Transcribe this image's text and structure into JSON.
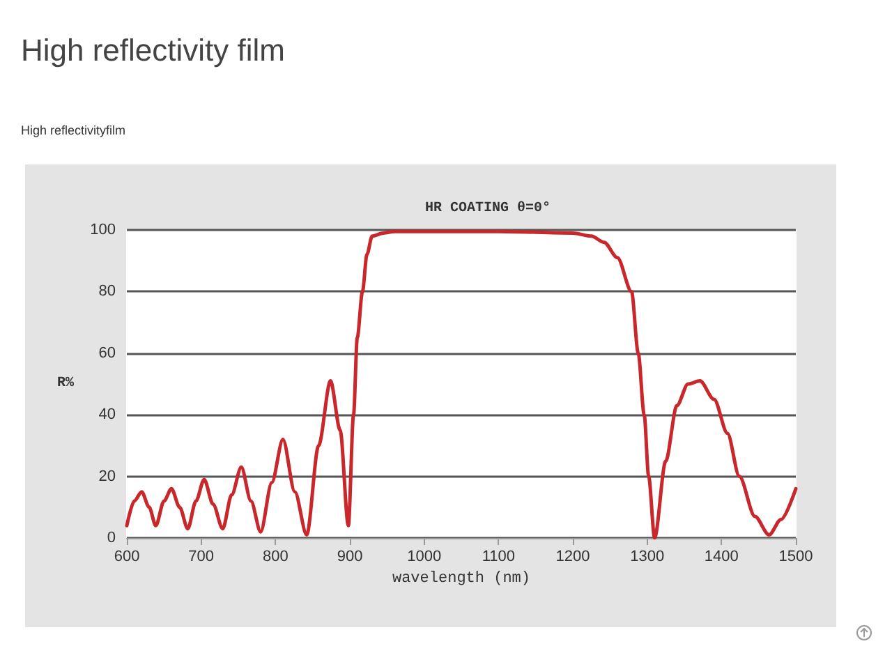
{
  "chart_data": {
    "type": "line",
    "title": "High reflectivity film",
    "subtitle": "High reflectivityfilm",
    "annotations": [
      "HR COATING θ=0°"
    ],
    "xlabel": "wavelength (nm)",
    "ylabel": "R%",
    "series": [
      {
        "color": "#c8282c",
        "x": [
          600,
          610,
          620,
          630,
          639,
          650,
          660,
          671,
          682,
          693,
          704,
          716,
          729,
          741,
          754,
          767,
          780,
          795,
          810,
          826,
          842,
          858,
          874,
          887,
          898,
          905,
          910,
          917,
          923,
          930,
          945,
          960,
          1000,
          1100,
          1200,
          1225,
          1242,
          1260,
          1279,
          1288,
          1296,
          1302,
          1310,
          1325,
          1340,
          1355,
          1371,
          1390,
          1408,
          1424,
          1445,
          1464,
          1480,
          1500
        ],
        "values": [
          4,
          12,
          15,
          10,
          4,
          12,
          16,
          10,
          3,
          12,
          19,
          11,
          3,
          14,
          23,
          12,
          2,
          18,
          32,
          15,
          1,
          30,
          51,
          35,
          4,
          40,
          65,
          80,
          92,
          98,
          99,
          99.5,
          99.5,
          99.5,
          99,
          98,
          96,
          91,
          80,
          60,
          40,
          20,
          0,
          25,
          43,
          50,
          51,
          45,
          34,
          20,
          7,
          1,
          6,
          16
        ]
      }
    ],
    "xlim": [
      600,
      1500
    ],
    "xticks": [
      600,
      700,
      800,
      900,
      1000,
      1100,
      1200,
      1300,
      1400,
      1500
    ],
    "ylim": [
      0,
      100
    ],
    "yticks": [
      0,
      20,
      40,
      60,
      80,
      100
    ],
    "grid": "y",
    "marker": "none",
    "line_style": "solid"
  }
}
